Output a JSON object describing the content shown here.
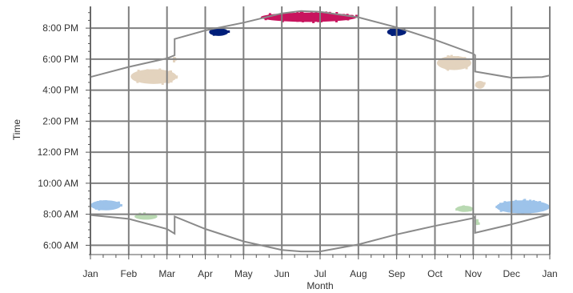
{
  "chart_data": {
    "type": "scatter",
    "xlabel": "Month",
    "ylabel": "Time",
    "x_ticks": [
      "Jan",
      "Feb",
      "Mar",
      "Apr",
      "May",
      "Jun",
      "Jul",
      "Aug",
      "Sep",
      "Oct",
      "Nov",
      "Dec",
      "Jan"
    ],
    "y_ticks": [
      "6:00 AM",
      "8:00 AM",
      "10:00 AM",
      "12:00 PM",
      "2:00 PM",
      "4:00 PM",
      "6:00 PM",
      "8:00 PM"
    ],
    "xlim_months": [
      0,
      12
    ],
    "ylim_hours": [
      5.4,
      21.4
    ],
    "grid": true,
    "lines": [
      {
        "name_hint": "sunset",
        "color": "#8a8a8a",
        "points": [
          [
            0,
            16.85
          ],
          [
            1,
            17.5
          ],
          [
            2,
            18.05
          ],
          [
            2.2,
            18.25
          ],
          [
            2.2,
            19.3
          ],
          [
            3,
            19.85
          ],
          [
            4,
            20.35
          ],
          [
            5,
            20.95
          ],
          [
            5.5,
            21.1
          ],
          [
            6,
            21.05
          ],
          [
            7,
            20.7
          ],
          [
            8,
            20.05
          ],
          [
            9,
            19.25
          ],
          [
            10,
            18.35
          ],
          [
            10.05,
            18.25
          ],
          [
            10.05,
            17.2
          ],
          [
            11,
            16.8
          ],
          [
            11.8,
            16.85
          ],
          [
            12,
            16.95
          ]
        ]
      },
      {
        "name_hint": "sunrise",
        "color": "#8a8a8a",
        "points": [
          [
            0,
            7.95
          ],
          [
            1,
            7.7
          ],
          [
            2,
            7.05
          ],
          [
            2.2,
            6.75
          ],
          [
            2.2,
            7.85
          ],
          [
            3,
            7.05
          ],
          [
            4,
            6.25
          ],
          [
            5,
            5.7
          ],
          [
            5.5,
            5.6
          ],
          [
            6,
            5.6
          ],
          [
            7,
            6.05
          ],
          [
            8,
            6.7
          ],
          [
            9,
            7.25
          ],
          [
            10,
            7.75
          ],
          [
            10.05,
            7.85
          ],
          [
            10.05,
            6.8
          ],
          [
            11,
            7.35
          ],
          [
            12,
            8.0
          ]
        ]
      }
    ],
    "clusters": [
      {
        "color": "#9dc3ea",
        "x_range": [
          0,
          0.8
        ],
        "y_range": [
          8.25,
          8.9
        ]
      },
      {
        "color": "#b9d9b2",
        "x_range": [
          1.15,
          1.75
        ],
        "y_range": [
          7.65,
          8.05
        ]
      },
      {
        "color": "#e3d3be",
        "x_range": [
          1.05,
          2.25
        ],
        "y_range": [
          16.4,
          17.35
        ]
      },
      {
        "color": "#e3d3be",
        "x_range": [
          2.15,
          2.22
        ],
        "y_range": [
          17.85,
          18.1
        ]
      },
      {
        "color": "#001f7a",
        "x_range": [
          3.1,
          3.6
        ],
        "y_range": [
          19.5,
          20.0
        ]
      },
      {
        "color": "#c8145e",
        "x_range": [
          4.45,
          6.95
        ],
        "y_range": [
          20.4,
          21.0
        ]
      },
      {
        "color": "#001f7a",
        "x_range": [
          7.75,
          8.25
        ],
        "y_range": [
          19.5,
          20.0
        ]
      },
      {
        "color": "#e3d3be",
        "x_range": [
          9.05,
          9.95
        ],
        "y_range": [
          17.3,
          18.2
        ]
      },
      {
        "color": "#e3d3be",
        "x_range": [
          10.05,
          10.3
        ],
        "y_range": [
          16.1,
          16.6
        ]
      },
      {
        "color": "#b9d9b2",
        "x_range": [
          9.55,
          10.0
        ],
        "y_range": [
          8.15,
          8.55
        ]
      },
      {
        "color": "#b9d9b2",
        "x_range": [
          10.05,
          10.15
        ],
        "y_range": [
          7.3,
          7.6
        ]
      },
      {
        "color": "#9dc3ea",
        "x_range": [
          10.6,
          12.0
        ],
        "y_range": [
          8.05,
          8.9
        ]
      }
    ]
  }
}
